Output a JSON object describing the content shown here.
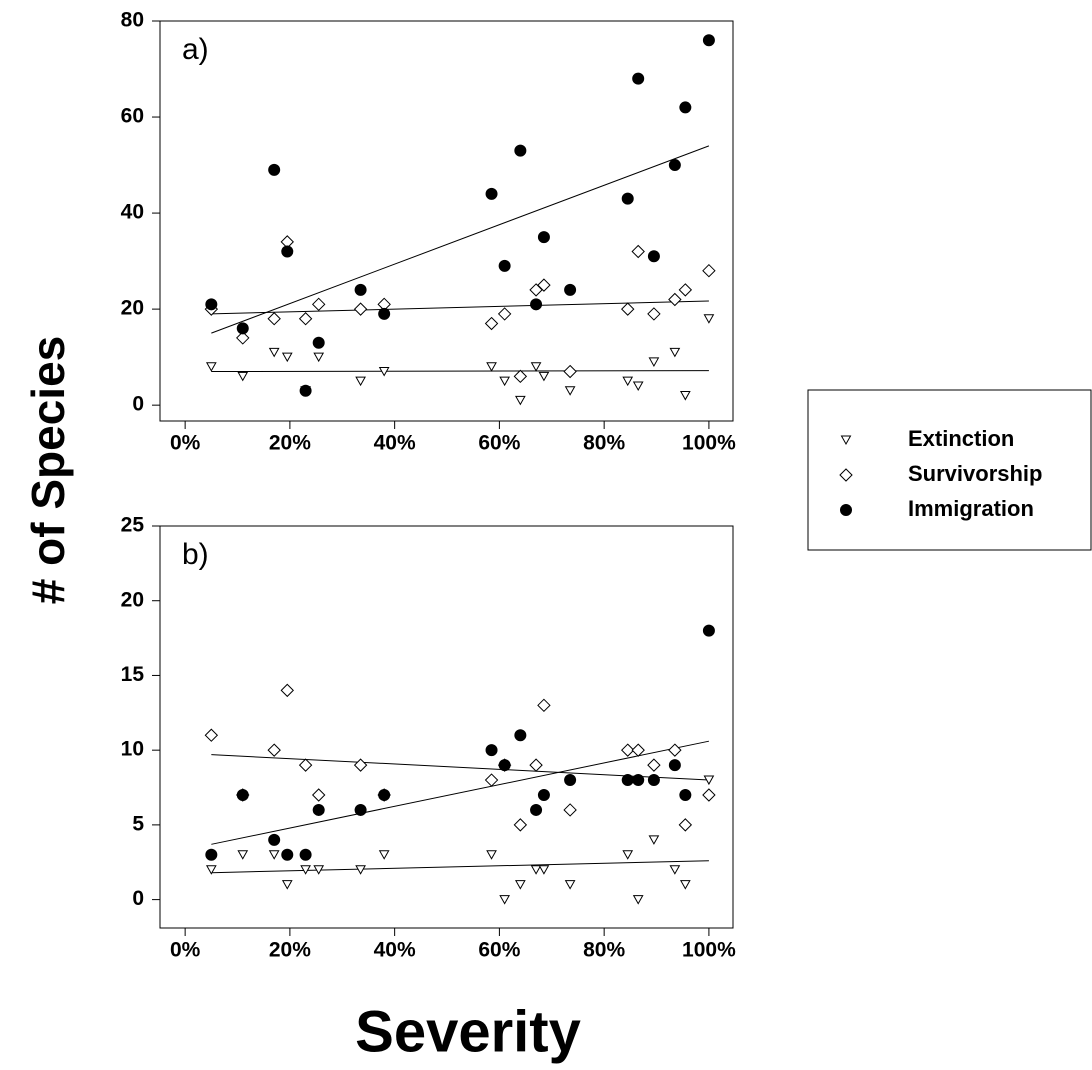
{
  "ylabel": "# of Species",
  "xlabel": "Severity",
  "chart_data": [
    {
      "type": "scatter",
      "title": "a)",
      "x": [
        5,
        11,
        17,
        19.5,
        23,
        25.5,
        33.5,
        38,
        58.5,
        61,
        64,
        67,
        68.5,
        73.5,
        84.5,
        86.5,
        89.5,
        93.5,
        95.5,
        100
      ],
      "xlim": [
        -4.8,
        104.6
      ],
      "xticks": [
        {
          "value": 0,
          "label": "0%"
        },
        {
          "value": 20,
          "label": "20%"
        },
        {
          "value": 40,
          "label": "40%"
        },
        {
          "value": 60,
          "label": "60%"
        },
        {
          "value": 80,
          "label": "80%"
        },
        {
          "value": 100,
          "label": "100%"
        }
      ],
      "ylim": [
        -3.3,
        80
      ],
      "yticks": [
        0,
        20,
        40,
        60,
        80
      ],
      "grid": false,
      "series": [
        {
          "name": "Extinction",
          "color": "#000000",
          "marker": "triangle-down",
          "filled": false,
          "values": [
            8,
            6,
            11,
            10,
            3,
            10,
            5,
            7,
            8,
            5,
            1,
            8,
            6,
            3,
            5,
            4,
            9,
            11,
            2,
            18
          ],
          "trend": [
            [
              5,
              7
            ],
            [
              100,
              7.2
            ]
          ]
        },
        {
          "name": "Survivorship",
          "color": "#000000",
          "marker": "diamond",
          "filled": false,
          "values": [
            20,
            14,
            18,
            34,
            18,
            21,
            20,
            21,
            17,
            19,
            6,
            24,
            25,
            7,
            20,
            32,
            19,
            22,
            24,
            28
          ],
          "trend": [
            [
              5,
              19
            ],
            [
              100,
              21.7
            ]
          ]
        },
        {
          "name": "Immigration",
          "color": "#000000",
          "marker": "circle",
          "filled": true,
          "values": [
            21,
            16,
            49,
            32,
            3,
            13,
            24,
            19,
            44,
            29,
            53,
            21,
            35,
            24,
            43,
            68,
            31,
            50,
            62,
            76
          ],
          "trend": [
            [
              5,
              15
            ],
            [
              100,
              54
            ]
          ]
        }
      ]
    },
    {
      "type": "scatter",
      "title": "b)",
      "x": [
        5,
        11,
        17,
        19.5,
        23,
        25.5,
        33.5,
        38,
        58.5,
        61,
        64,
        67,
        68.5,
        73.5,
        84.5,
        86.5,
        89.5,
        93.5,
        95.5,
        100
      ],
      "xlim": [
        -4.8,
        104.6
      ],
      "xticks": [
        {
          "value": 0,
          "label": "0%"
        },
        {
          "value": 20,
          "label": "20%"
        },
        {
          "value": 40,
          "label": "40%"
        },
        {
          "value": 60,
          "label": "60%"
        },
        {
          "value": 80,
          "label": "80%"
        },
        {
          "value": 100,
          "label": "100%"
        }
      ],
      "ylim": [
        -1.9,
        25
      ],
      "yticks": [
        0,
        5,
        10,
        15,
        20,
        25
      ],
      "grid": false,
      "series": [
        {
          "color": "#000000",
          "marker": "triangle-down",
          "filled": false,
          "values": [
            2,
            3,
            3,
            1,
            2,
            2,
            2,
            3,
            3,
            0,
            1,
            2,
            2,
            1,
            3,
            0,
            4,
            2,
            1,
            8
          ],
          "trend": [
            [
              5,
              1.8
            ],
            [
              100,
              2.6
            ]
          ]
        },
        {
          "color": "#000000",
          "marker": "diamond",
          "filled": false,
          "values": [
            11,
            7,
            10,
            14,
            9,
            7,
            9,
            7,
            8,
            9,
            5,
            9,
            13,
            6,
            10,
            10,
            9,
            10,
            5,
            7
          ],
          "trend": [
            [
              5,
              9.7
            ],
            [
              100,
              8
            ]
          ]
        },
        {
          "color": "#000000",
          "marker": "circle",
          "filled": true,
          "values": [
            3,
            7,
            4,
            3,
            3,
            6,
            6,
            7,
            10,
            9,
            11,
            6,
            7,
            8,
            8,
            8,
            8,
            9,
            7,
            18
          ],
          "trend": [
            [
              5,
              3.7
            ],
            [
              100,
              10.6
            ]
          ]
        }
      ]
    }
  ]
}
